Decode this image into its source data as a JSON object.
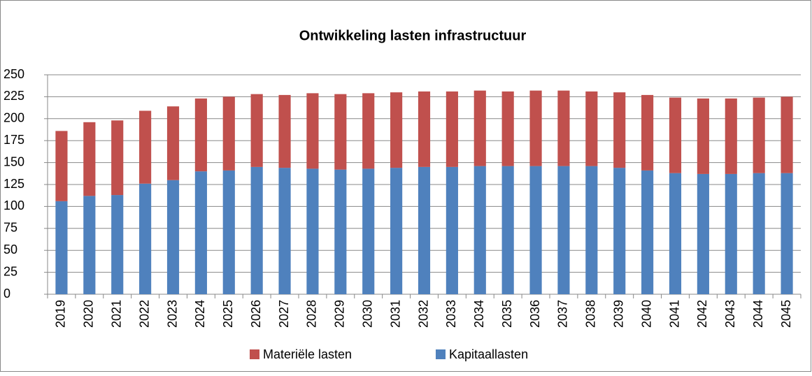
{
  "chart_data": {
    "type": "stacked-bar",
    "title": "Ontwikkeling lasten infrastructuur",
    "categories": [
      "2019",
      "2020",
      "2021",
      "2022",
      "2023",
      "2024",
      "2025",
      "2026",
      "2027",
      "2028",
      "2029",
      "2030",
      "2031",
      "2032",
      "2033",
      "2034",
      "2035",
      "2036",
      "2037",
      "2038",
      "2039",
      "2040",
      "2041",
      "2042",
      "2043",
      "2044",
      "2045"
    ],
    "series": [
      {
        "name": "Materiële lasten",
        "color": "#c0504d",
        "values": [
          80,
          84,
          85,
          83,
          84,
          83,
          84,
          83,
          83,
          86,
          86,
          86,
          86,
          86,
          86,
          86,
          85,
          86,
          86,
          85,
          86,
          86,
          86,
          86,
          86,
          86,
          87
        ]
      },
      {
        "name": "Kapitaallasten",
        "color": "#4f81bd",
        "values": [
          106,
          112,
          113,
          126,
          130,
          140,
          141,
          145,
          144,
          143,
          142,
          143,
          144,
          145,
          145,
          146,
          146,
          146,
          146,
          146,
          144,
          141,
          138,
          137,
          137,
          138,
          138
        ]
      }
    ],
    "ylim": [
      0,
      250
    ],
    "yticks": [
      0,
      25,
      50,
      75,
      100,
      125,
      150,
      175,
      200,
      225,
      250
    ],
    "grid": true
  }
}
